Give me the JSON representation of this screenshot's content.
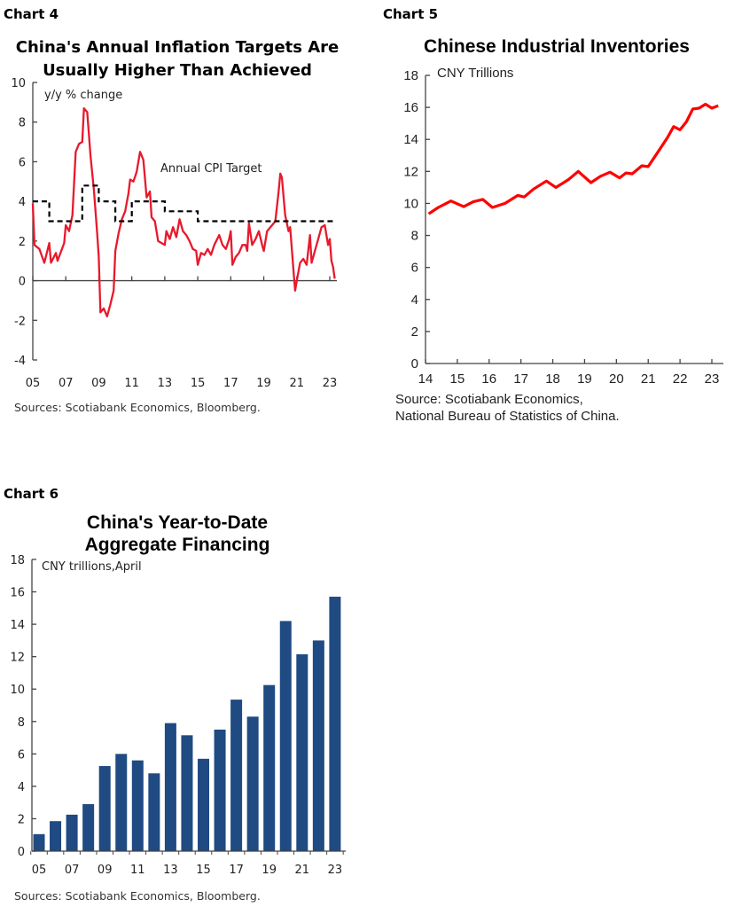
{
  "colors": {
    "cpi": "#e8192c",
    "target": "#000000",
    "inventories": "#ff0000",
    "bars": "#1f4a82"
  },
  "chart_data": [
    {
      "id": "chart4",
      "label": "Chart 4",
      "type": "line",
      "title": [
        "China's Annual Inflation Targets Are",
        "Usually Higher Than Achieved"
      ],
      "ylabel": "y/y % change",
      "annotation": "Annual CPI Target",
      "ylim": [
        -4,
        10
      ],
      "yticks": [
        10,
        8,
        6,
        4,
        2,
        0,
        -2,
        -4
      ],
      "xlim": [
        2005,
        2023
      ],
      "xticks": [
        "05",
        "07",
        "09",
        "11",
        "13",
        "15",
        "17",
        "19",
        "21",
        "23"
      ],
      "source": "Sources: Scotiabank Economics, Bloomberg.",
      "series": [
        {
          "name": "CPI y/y",
          "points": [
            [
              2005.0,
              3.9
            ],
            [
              2005.1,
              1.8
            ],
            [
              2005.4,
              1.6
            ],
            [
              2005.7,
              0.9
            ],
            [
              2006.0,
              1.9
            ],
            [
              2006.1,
              0.9
            ],
            [
              2006.4,
              1.4
            ],
            [
              2006.5,
              1.0
            ],
            [
              2006.9,
              1.9
            ],
            [
              2007.0,
              2.8
            ],
            [
              2007.2,
              2.5
            ],
            [
              2007.4,
              3.3
            ],
            [
              2007.6,
              6.5
            ],
            [
              2007.8,
              6.9
            ],
            [
              2008.0,
              7.0
            ],
            [
              2008.1,
              8.7
            ],
            [
              2008.3,
              8.5
            ],
            [
              2008.5,
              6.3
            ],
            [
              2008.7,
              4.6
            ],
            [
              2008.9,
              2.4
            ],
            [
              2009.0,
              1.2
            ],
            [
              2009.1,
              -1.6
            ],
            [
              2009.3,
              -1.4
            ],
            [
              2009.5,
              -1.8
            ],
            [
              2009.7,
              -1.2
            ],
            [
              2009.9,
              -0.5
            ],
            [
              2010.0,
              1.5
            ],
            [
              2010.2,
              2.4
            ],
            [
              2010.4,
              3.1
            ],
            [
              2010.6,
              3.5
            ],
            [
              2010.8,
              4.4
            ],
            [
              2010.9,
              5.1
            ],
            [
              2011.1,
              5.0
            ],
            [
              2011.3,
              5.5
            ],
            [
              2011.5,
              6.5
            ],
            [
              2011.7,
              6.1
            ],
            [
              2011.9,
              4.2
            ],
            [
              2012.1,
              4.5
            ],
            [
              2012.2,
              3.2
            ],
            [
              2012.4,
              3.0
            ],
            [
              2012.6,
              2.0
            ],
            [
              2012.8,
              1.9
            ],
            [
              2013.0,
              1.8
            ],
            [
              2013.1,
              2.5
            ],
            [
              2013.3,
              2.1
            ],
            [
              2013.5,
              2.7
            ],
            [
              2013.7,
              2.2
            ],
            [
              2013.9,
              3.1
            ],
            [
              2014.1,
              2.5
            ],
            [
              2014.3,
              2.3
            ],
            [
              2014.5,
              2.0
            ],
            [
              2014.7,
              1.6
            ],
            [
              2014.9,
              1.5
            ],
            [
              2015.0,
              0.8
            ],
            [
              2015.2,
              1.4
            ],
            [
              2015.4,
              1.3
            ],
            [
              2015.6,
              1.6
            ],
            [
              2015.8,
              1.3
            ],
            [
              2016.0,
              1.8
            ],
            [
              2016.3,
              2.3
            ],
            [
              2016.5,
              1.8
            ],
            [
              2016.7,
              1.6
            ],
            [
              2016.9,
              2.1
            ],
            [
              2017.0,
              2.5
            ],
            [
              2017.1,
              0.8
            ],
            [
              2017.3,
              1.2
            ],
            [
              2017.5,
              1.4
            ],
            [
              2017.7,
              1.8
            ],
            [
              2017.9,
              1.8
            ],
            [
              2018.0,
              1.5
            ],
            [
              2018.1,
              2.9
            ],
            [
              2018.3,
              1.8
            ],
            [
              2018.5,
              2.1
            ],
            [
              2018.7,
              2.5
            ],
            [
              2018.9,
              1.8
            ],
            [
              2019.0,
              1.5
            ],
            [
              2019.2,
              2.5
            ],
            [
              2019.5,
              2.8
            ],
            [
              2019.7,
              3.0
            ],
            [
              2019.9,
              4.5
            ],
            [
              2020.0,
              5.4
            ],
            [
              2020.1,
              5.2
            ],
            [
              2020.3,
              3.3
            ],
            [
              2020.5,
              2.5
            ],
            [
              2020.6,
              2.7
            ],
            [
              2020.8,
              0.5
            ],
            [
              2020.9,
              -0.5
            ],
            [
              2021.0,
              0.0
            ],
            [
              2021.2,
              0.9
            ],
            [
              2021.4,
              1.1
            ],
            [
              2021.6,
              0.8
            ],
            [
              2021.8,
              2.3
            ],
            [
              2021.9,
              0.9
            ],
            [
              2022.1,
              1.5
            ],
            [
              2022.3,
              2.1
            ],
            [
              2022.5,
              2.7
            ],
            [
              2022.7,
              2.8
            ],
            [
              2022.9,
              1.8
            ],
            [
              2023.0,
              2.1
            ],
            [
              2023.1,
              1.0
            ],
            [
              2023.2,
              0.7
            ],
            [
              2023.3,
              0.1
            ]
          ]
        },
        {
          "name": "Annual CPI Target",
          "style": "dashed-step",
          "points": [
            [
              2005,
              4
            ],
            [
              2006,
              4
            ],
            [
              2006,
              3
            ],
            [
              2008,
              3
            ],
            [
              2008,
              4.8
            ],
            [
              2009,
              4.8
            ],
            [
              2009,
              4
            ],
            [
              2010,
              4
            ],
            [
              2010,
              3
            ],
            [
              2011,
              3
            ],
            [
              2011,
              4
            ],
            [
              2013,
              4
            ],
            [
              2013,
              3.5
            ],
            [
              2015,
              3.5
            ],
            [
              2015,
              3
            ],
            [
              2023.3,
              3
            ]
          ]
        }
      ]
    },
    {
      "id": "chart5",
      "label": "Chart 5",
      "type": "line",
      "title": [
        "Chinese Industrial Inventories"
      ],
      "ylabel": "CNY Trillions",
      "ylim": [
        0,
        18
      ],
      "yticks": [
        18,
        16,
        14,
        12,
        10,
        8,
        6,
        4,
        2,
        0
      ],
      "xlim": [
        2014,
        2023
      ],
      "xticks": [
        "14",
        "15",
        "16",
        "17",
        "18",
        "19",
        "20",
        "21",
        "22",
        "23"
      ],
      "source": [
        "Source: Scotiabank Economics,",
        "National Bureau of Statistics of China."
      ],
      "series": [
        {
          "name": "Inventories",
          "points": [
            [
              2014.1,
              9.35
            ],
            [
              2014.4,
              9.75
            ],
            [
              2014.8,
              10.15
            ],
            [
              2015.2,
              9.8
            ],
            [
              2015.5,
              10.1
            ],
            [
              2015.8,
              10.25
            ],
            [
              2016.1,
              9.75
            ],
            [
              2016.5,
              10.0
            ],
            [
              2016.9,
              10.5
            ],
            [
              2017.1,
              10.4
            ],
            [
              2017.4,
              10.9
            ],
            [
              2017.8,
              11.4
            ],
            [
              2018.1,
              11.0
            ],
            [
              2018.5,
              11.5
            ],
            [
              2018.8,
              12.0
            ],
            [
              2019.2,
              11.3
            ],
            [
              2019.5,
              11.7
            ],
            [
              2019.8,
              11.95
            ],
            [
              2020.1,
              11.6
            ],
            [
              2020.3,
              11.9
            ],
            [
              2020.5,
              11.85
            ],
            [
              2020.8,
              12.35
            ],
            [
              2021.0,
              12.3
            ],
            [
              2021.4,
              13.5
            ],
            [
              2021.6,
              14.1
            ],
            [
              2021.8,
              14.8
            ],
            [
              2022.0,
              14.6
            ],
            [
              2022.2,
              15.1
            ],
            [
              2022.4,
              15.9
            ],
            [
              2022.6,
              15.95
            ],
            [
              2022.8,
              16.2
            ],
            [
              2023.0,
              15.95
            ],
            [
              2023.2,
              16.1
            ]
          ]
        }
      ]
    },
    {
      "id": "chart6",
      "label": "Chart 6",
      "type": "bar",
      "title": [
        "China's Year-to-Date",
        "Aggregate Financing"
      ],
      "ylabel": "CNY trillions,April",
      "ylim": [
        0,
        18
      ],
      "yticks": [
        18,
        16,
        14,
        12,
        10,
        8,
        6,
        4,
        2,
        0
      ],
      "categories": [
        "05",
        "06",
        "07",
        "08",
        "09",
        "10",
        "11",
        "12",
        "13",
        "14",
        "15",
        "16",
        "17",
        "18",
        "19",
        "20",
        "21",
        "22",
        "23"
      ],
      "xticks": [
        "05",
        "07",
        "09",
        "11",
        "13",
        "15",
        "17",
        "19",
        "21",
        "23"
      ],
      "values": [
        1.05,
        1.85,
        2.25,
        2.9,
        5.25,
        6.0,
        5.6,
        4.8,
        7.9,
        7.15,
        5.7,
        7.5,
        9.35,
        8.3,
        10.25,
        14.2,
        12.15,
        13.0,
        15.7
      ],
      "source": "Sources: Scotiabank Economics, Bloomberg."
    }
  ]
}
